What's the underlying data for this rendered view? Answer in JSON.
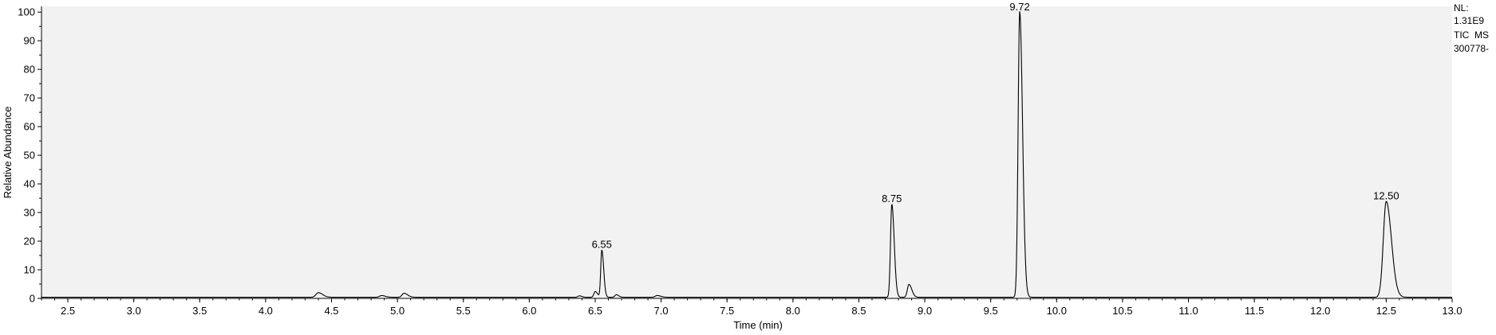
{
  "chart_data": {
    "type": "line",
    "title": "",
    "xlabel": "Time (min)",
    "ylabel": "Relative Abundance",
    "xlim": [
      2.3,
      13.0
    ],
    "ylim": [
      0,
      102
    ],
    "x_ticks": [
      "2.5",
      "3.0",
      "3.5",
      "4.0",
      "4.5",
      "5.0",
      "5.5",
      "6.0",
      "6.5",
      "7.0",
      "7.5",
      "8.0",
      "8.5",
      "9.0",
      "9.5",
      "10.0",
      "10.5",
      "11.0",
      "11.5",
      "12.0",
      "12.5",
      "13.0"
    ],
    "y_ticks": [
      "0",
      "10",
      "20",
      "30",
      "40",
      "50",
      "60",
      "70",
      "80",
      "90",
      "100"
    ],
    "grid": false,
    "background": "#f2f2f2",
    "line_color": "#000000",
    "baseline": 0.4,
    "peaks": [
      {
        "rt": 4.4,
        "height": 1.6,
        "width": 0.018
      },
      {
        "rt": 4.88,
        "height": 0.6,
        "width": 0.015
      },
      {
        "rt": 5.05,
        "height": 1.4,
        "width": 0.015
      },
      {
        "rt": 6.38,
        "height": 0.5,
        "width": 0.01
      },
      {
        "rt": 6.5,
        "height": 2.0,
        "width": 0.01
      },
      {
        "rt": 6.55,
        "height": 16.5,
        "width": 0.008
      },
      {
        "rt": 6.66,
        "height": 0.9,
        "width": 0.01
      },
      {
        "rt": 6.97,
        "height": 0.6,
        "width": 0.015
      },
      {
        "rt": 8.75,
        "height": 32.5,
        "width": 0.01
      },
      {
        "rt": 8.88,
        "height": 4.5,
        "width": 0.012
      },
      {
        "rt": 9.72,
        "height": 99.8,
        "width": 0.012
      },
      {
        "rt": 12.5,
        "height": 33.5,
        "width": 0.022
      }
    ],
    "peak_labels": [
      {
        "rt": 6.55,
        "y": 16.5,
        "text": "6.55"
      },
      {
        "rt": 8.75,
        "y": 32.5,
        "text": "8.75"
      },
      {
        "rt": 9.72,
        "y": 99.8,
        "text": "9.72"
      },
      {
        "rt": 12.5,
        "y": 33.5,
        "text": "12.50"
      }
    ]
  },
  "info": {
    "nl_label": "NL:",
    "nl_value": "1.31E9",
    "scan_filter": "TIC  MS",
    "sample": "300778-"
  }
}
